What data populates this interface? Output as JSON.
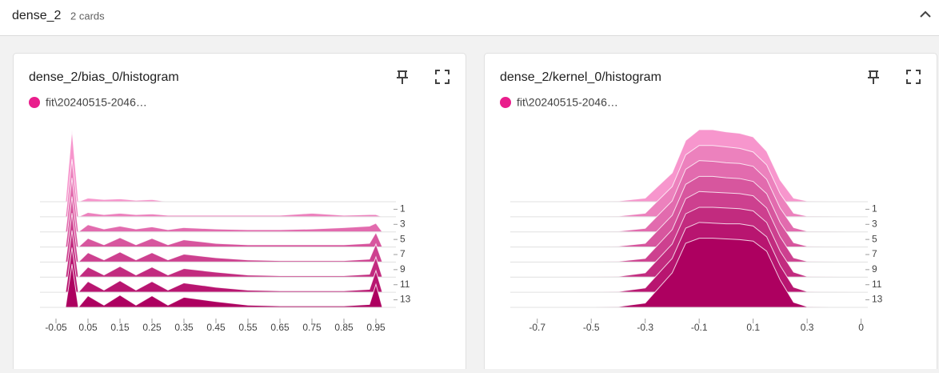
{
  "header": {
    "title": "dense_2",
    "subtitle": "2 cards"
  },
  "chart_data": [
    {
      "type": "ridgeline",
      "title": "dense_2/bias_0/histogram",
      "legend": "fit\\20240515-2046…",
      "color": "#e91e8c",
      "xlim": [
        -0.1,
        1.0
      ],
      "xticks": [
        -0.05,
        0.05,
        0.15,
        0.25,
        0.35,
        0.45,
        0.55,
        0.65,
        0.75,
        0.85,
        0.95
      ],
      "ylim": [
        0,
        14
      ],
      "yticks": [
        1,
        3,
        5,
        7,
        9,
        11,
        13
      ],
      "bins": [
        -0.02,
        0.0,
        0.02,
        0.05,
        0.1,
        0.15,
        0.2,
        0.25,
        0.3,
        0.35,
        0.45,
        0.55,
        0.65,
        0.75,
        0.85,
        0.93,
        0.95,
        0.97
      ],
      "rows": [
        {
          "step": 0,
          "values": [
            0,
            1,
            0,
            0.05,
            0.03,
            0.04,
            0.02,
            0.03,
            0,
            0,
            0,
            0,
            0,
            0,
            0,
            0,
            0,
            0
          ]
        },
        {
          "step": 2,
          "values": [
            0,
            0.8,
            0,
            0.06,
            0.03,
            0.05,
            0.03,
            0.04,
            0.02,
            0.02,
            0.02,
            0.02,
            0.02,
            0.05,
            0.02,
            0.03,
            0.03,
            0
          ]
        },
        {
          "step": 4,
          "values": [
            0,
            0.75,
            0,
            0.1,
            0.04,
            0.08,
            0.04,
            0.07,
            0.03,
            0.06,
            0.04,
            0.03,
            0.03,
            0.04,
            0.06,
            0.08,
            0.12,
            0
          ]
        },
        {
          "step": 6,
          "values": [
            0,
            0.7,
            0,
            0.12,
            0.03,
            0.13,
            0.03,
            0.12,
            0.03,
            0.1,
            0.05,
            0.03,
            0.03,
            0.03,
            0.03,
            0.05,
            0.2,
            0
          ]
        },
        {
          "step": 8,
          "values": [
            0,
            0.68,
            0,
            0.13,
            0.03,
            0.14,
            0.03,
            0.13,
            0.03,
            0.11,
            0.06,
            0.03,
            0.02,
            0.02,
            0.02,
            0.04,
            0.25,
            0
          ]
        },
        {
          "step": 10,
          "values": [
            0,
            0.65,
            0,
            0.14,
            0.03,
            0.15,
            0.03,
            0.14,
            0.03,
            0.12,
            0.07,
            0.03,
            0.02,
            0.02,
            0.02,
            0.04,
            0.28,
            0
          ]
        },
        {
          "step": 12,
          "values": [
            0,
            0.62,
            0,
            0.15,
            0.03,
            0.16,
            0.03,
            0.15,
            0.03,
            0.13,
            0.07,
            0.03,
            0.02,
            0.02,
            0.02,
            0.04,
            0.3,
            0
          ]
        },
        {
          "step": 14,
          "values": [
            0,
            0.6,
            0,
            0.16,
            0.03,
            0.17,
            0.03,
            0.16,
            0.03,
            0.14,
            0.08,
            0.03,
            0.02,
            0.02,
            0.02,
            0.04,
            0.32,
            0
          ]
        }
      ]
    },
    {
      "type": "ridgeline",
      "title": "dense_2/kernel_0/histogram",
      "legend": "fit\\20240515-2046…",
      "color": "#e91e8c",
      "xlim": [
        -0.8,
        0.51
      ],
      "xticks": [
        -0.7,
        -0.5,
        -0.3,
        -0.1,
        0.1,
        0.3,
        {
          "value": 0.5,
          "label": "0"
        }
      ],
      "ylim": [
        0,
        14
      ],
      "yticks": [
        1,
        3,
        5,
        7,
        9,
        11,
        13
      ],
      "bins": [
        -0.8,
        -0.6,
        -0.4,
        -0.3,
        -0.2,
        -0.15,
        -0.1,
        -0.05,
        0,
        0.05,
        0.1,
        0.15,
        0.2,
        0.25,
        0.3,
        0.5
      ],
      "rows": [
        {
          "step": 0,
          "values": [
            0,
            0,
            0.01,
            0.05,
            0.4,
            0.85,
            1,
            1,
            0.97,
            0.95,
            0.9,
            0.7,
            0.3,
            0.05,
            0.01,
            0
          ]
        },
        {
          "step": 2,
          "values": [
            0,
            0,
            0.01,
            0.05,
            0.42,
            0.86,
            0.99,
            0.99,
            0.97,
            0.95,
            0.9,
            0.72,
            0.32,
            0.05,
            0.01,
            0
          ]
        },
        {
          "step": 4,
          "values": [
            0,
            0,
            0.01,
            0.05,
            0.43,
            0.87,
            0.99,
            0.98,
            0.96,
            0.95,
            0.91,
            0.73,
            0.33,
            0.06,
            0.01,
            0
          ]
        },
        {
          "step": 6,
          "values": [
            0,
            0,
            0.01,
            0.05,
            0.44,
            0.87,
            0.98,
            0.98,
            0.96,
            0.95,
            0.91,
            0.74,
            0.34,
            0.06,
            0.01,
            0
          ]
        },
        {
          "step": 8,
          "values": [
            0,
            0,
            0.01,
            0.05,
            0.45,
            0.88,
            0.98,
            0.97,
            0.96,
            0.95,
            0.92,
            0.75,
            0.35,
            0.06,
            0.01,
            0
          ]
        },
        {
          "step": 10,
          "values": [
            0,
            0,
            0.01,
            0.06,
            0.46,
            0.88,
            0.97,
            0.97,
            0.96,
            0.95,
            0.92,
            0.76,
            0.36,
            0.07,
            0.01,
            0
          ]
        },
        {
          "step": 12,
          "values": [
            0,
            0,
            0.01,
            0.06,
            0.47,
            0.89,
            0.97,
            0.96,
            0.95,
            0.95,
            0.92,
            0.77,
            0.37,
            0.07,
            0.01,
            0
          ]
        },
        {
          "step": 14,
          "values": [
            0,
            0,
            0.01,
            0.06,
            0.48,
            0.89,
            0.96,
            0.96,
            0.95,
            0.94,
            0.92,
            0.78,
            0.38,
            0.07,
            0.01,
            0
          ]
        }
      ]
    }
  ]
}
